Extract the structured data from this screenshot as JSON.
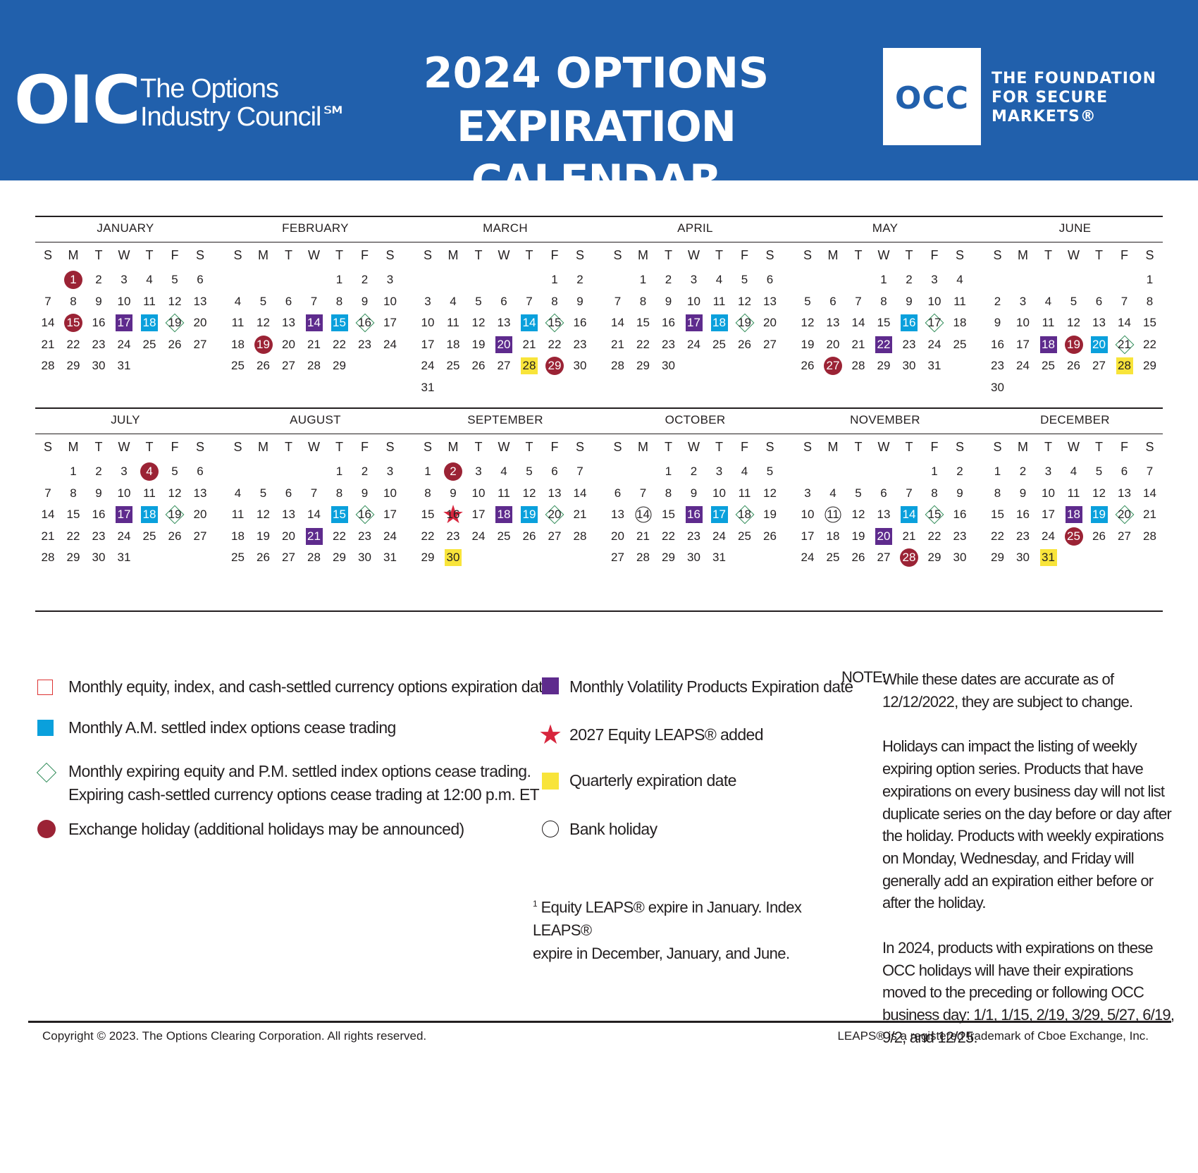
{
  "header": {
    "oic_logo": "OIC",
    "oic_name_line1": "The Options",
    "oic_name_line2": "Industry Council℠",
    "title_line1": "2024 OPTIONS",
    "title_line2": "EXPIRATION CALENDAR",
    "occ_logo": "OCC",
    "occ_tag_line1": "THE FOUNDATION",
    "occ_tag_line2": "FOR SECURE",
    "occ_tag_line3": "MARKETS®",
    "bg_color": "#2160ac"
  },
  "weekday_labels": [
    "S",
    "M",
    "T",
    "W",
    "T",
    "F",
    "S"
  ],
  "colors": {
    "volatility": "#5e2b8d",
    "am_settled": "#0aa0dc",
    "quarterly": "#f8e43a",
    "holiday": "#9b2335",
    "diamond": "#2e8b57",
    "star": "#d7263d"
  },
  "months": [
    {
      "name": "JANUARY",
      "start": 1,
      "days": 31,
      "marks": {
        "1": "holiday",
        "15": "holiday",
        "17": "purple",
        "18": "blue",
        "19": "diamond"
      }
    },
    {
      "name": "FEBRUARY",
      "start": 4,
      "days": 29,
      "marks": {
        "14": "purple",
        "15": "blue",
        "16": "diamond",
        "19": "holiday"
      }
    },
    {
      "name": "MARCH",
      "start": 5,
      "days": 31,
      "marks": {
        "14": "blue",
        "15": "diamond",
        "20": "purple",
        "28": "yellow",
        "29": "holiday"
      }
    },
    {
      "name": "APRIL",
      "start": 1,
      "days": 30,
      "marks": {
        "17": "purple",
        "18": "blue",
        "19": "diamond"
      }
    },
    {
      "name": "MAY",
      "start": 3,
      "days": 31,
      "marks": {
        "16": "blue",
        "17": "diamond",
        "22": "purple",
        "27": "holiday"
      }
    },
    {
      "name": "JUNE",
      "start": 6,
      "days": 30,
      "marks": {
        "18": "purple",
        "19": "holiday",
        "20": "blue",
        "21": "diamond",
        "28": "yellow"
      }
    },
    {
      "name": "JULY",
      "start": 1,
      "days": 31,
      "marks": {
        "4": "holiday",
        "17": "purple",
        "18": "blue",
        "19": "diamond"
      }
    },
    {
      "name": "AUGUST",
      "start": 4,
      "days": 31,
      "marks": {
        "15": "blue",
        "16": "diamond",
        "21": "purple"
      }
    },
    {
      "name": "SEPTEMBER",
      "start": 0,
      "days": 30,
      "marks": {
        "2": "holiday",
        "16": "star",
        "18": "purple",
        "19": "blue",
        "20": "diamond",
        "30": "yellow"
      }
    },
    {
      "name": "OCTOBER",
      "start": 2,
      "days": 31,
      "marks": {
        "14": "bank",
        "16": "purple",
        "17": "blue",
        "18": "diamond"
      }
    },
    {
      "name": "NOVEMBER",
      "start": 5,
      "days": 30,
      "marks": {
        "11": "bank",
        "14": "blue",
        "15": "diamond",
        "20": "purple",
        "28": "holiday"
      }
    },
    {
      "name": "DECEMBER",
      "start": 0,
      "days": 31,
      "marks": {
        "18": "purple",
        "19": "blue",
        "20": "diamond",
        "25": "holiday",
        "31": "yellow"
      }
    }
  ],
  "legend": {
    "monthly_equity": "Monthly equity, index, and cash-settled currency options expiration date¹",
    "am_settled": "Monthly A.M. settled index options cease trading",
    "pm_settled_line1": "Monthly expiring equity and P.M. settled index options cease trading.",
    "pm_settled_line2": "Expiring cash-settled currency options cease trading at 12:00 p.m. ET",
    "exchange_holiday": "Exchange holiday (additional holidays may be announced)",
    "volatility": "Monthly Volatility Products Expiration date",
    "leaps_added": "2027 Equity LEAPS® added",
    "quarterly": "Quarterly expiration date",
    "bank_holiday": "Bank holiday"
  },
  "footnote": {
    "marker": "1",
    "line1": "Equity LEAPS® expire in January.  Index LEAPS®",
    "line2": "expire in December, January, and June."
  },
  "note": {
    "label": "NOTE:",
    "p1": "While these dates are accurate as of 12/12/2022, they are subject to change.",
    "p2": "Holidays can impact the listing of weekly expiring option series. Products that have expirations on every business day will not list duplicate series on the day before or day after the holiday. Products with weekly expirations on Monday, Wednesday, and Friday will generally add an expiration either before or after the holiday.",
    "p3": "In 2024, products with expirations on these OCC holidays will have their expirations moved to the preceding or following OCC business day: 1/1, 1/15, 2/19, 3/29, 5/27, 6/19, 9/2, and 12/25."
  },
  "footer": {
    "copyright": "Copyright © 2023. The Options Clearing Corporation. All rights reserved.",
    "trademark": "LEAPS® is a registered trademark of Cboe Exchange, Inc."
  }
}
